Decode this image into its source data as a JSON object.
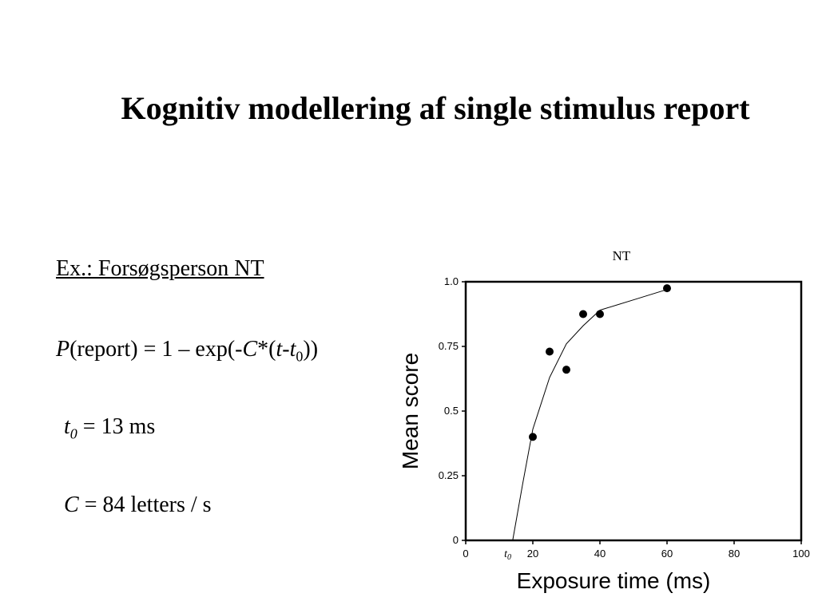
{
  "slide": {
    "title": "Kognitiv modellering af single stimulus report",
    "subject_line": "Ex.: Forsøgsperson NT",
    "formula": {
      "p": "P",
      "report": "(report) = 1 – exp(-",
      "c": "C",
      "star": "*(",
      "t": "t",
      "dash": "-",
      "t0_base": "t",
      "t0_sub": "0",
      "close": "))"
    },
    "t0_param": {
      "symbol": "t",
      "sub": "0",
      "rest": " = 13 ms"
    },
    "c_param": {
      "symbol": "C",
      "rest": " = 84 letters / s"
    }
  },
  "chart_data": {
    "type": "scatter",
    "title": "NT",
    "xlabel": "Exposure time (ms)",
    "ylabel": "Mean score",
    "xlim": [
      0,
      100
    ],
    "ylim": [
      0,
      1.0
    ],
    "xticks": [
      0,
      20,
      40,
      60,
      80,
      100
    ],
    "xtick_labels": [
      "0",
      "20",
      "40",
      "60",
      "80",
      "100"
    ],
    "yticks": [
      0,
      0.25,
      0.5,
      0.75,
      1.0
    ],
    "ytick_labels": [
      "0",
      "0.25",
      "0.5",
      "0.75",
      "1.0"
    ],
    "t0_marker": {
      "base": "t",
      "sub": "0",
      "x": 13
    },
    "grid": false,
    "series": [
      {
        "kind": "points",
        "x": [
          20,
          25,
          30,
          35,
          40,
          60
        ],
        "y": [
          0.4,
          0.73,
          0.66,
          0.875,
          0.875,
          0.975
        ]
      },
      {
        "kind": "fit-line",
        "x": [
          14,
          17,
          20,
          25,
          30,
          35,
          40,
          50,
          60
        ],
        "y": [
          0.0,
          0.22,
          0.43,
          0.63,
          0.76,
          0.83,
          0.89,
          0.93,
          0.97
        ]
      }
    ]
  }
}
